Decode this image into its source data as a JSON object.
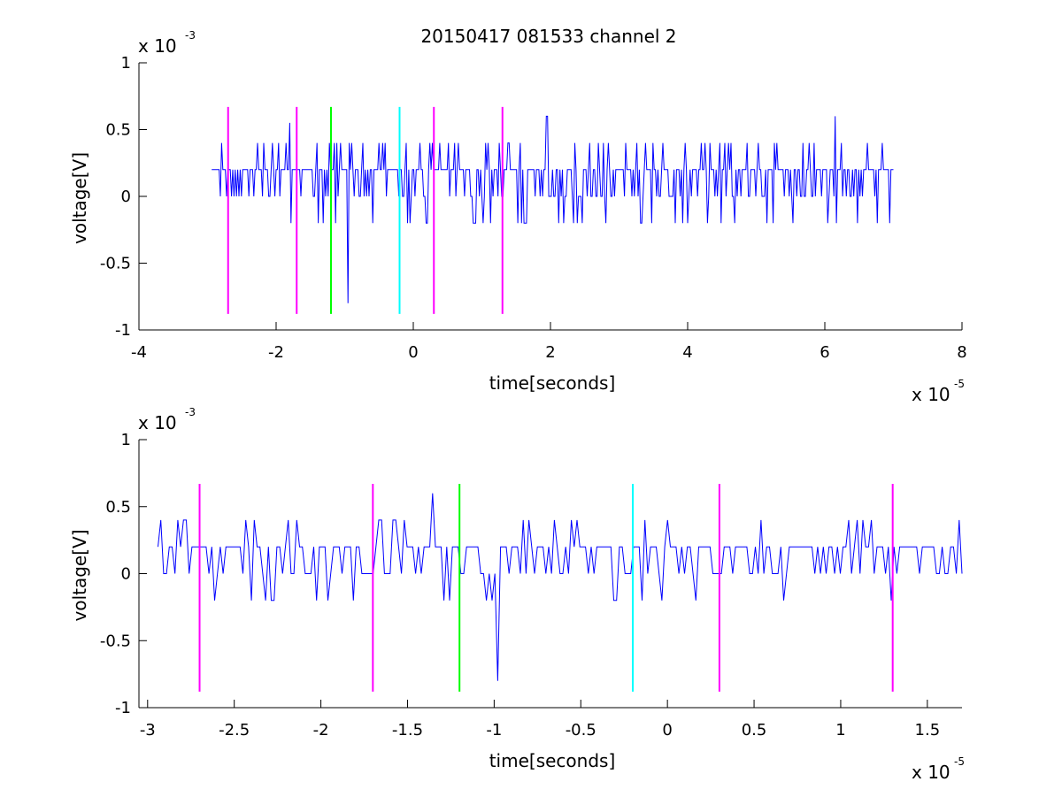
{
  "title": "20150417 081533 channel 2",
  "chart_data": [
    {
      "type": "line",
      "title": "20150417 081533 channel 2",
      "xlabel": "time[seconds]",
      "ylabel": "voltage[V]",
      "x_multiplier": "x 10",
      "x_exponent": "-5",
      "y_multiplier": "x 10",
      "y_exponent": "-3",
      "xlim": [
        -4,
        8
      ],
      "ylim": [
        -1,
        1
      ],
      "xticks": [
        -4,
        -2,
        0,
        2,
        4,
        6,
        8
      ],
      "xtick_labels": [
        "-4",
        "-2",
        "0",
        "2",
        "4",
        "6",
        "8"
      ],
      "yticks": [
        -1,
        -0.5,
        0,
        0.5,
        1
      ],
      "ytick_labels": [
        "-1",
        "-0.5",
        "0",
        "0.5",
        "1"
      ],
      "grid": false,
      "series": [
        {
          "color": "#0000ff",
          "x_range": [
            -2.94,
            7.0
          ],
          "levels": [
            0,
            0.2,
            0.4,
            -0.2
          ],
          "spikes": [
            {
              "x": -0.95,
              "y": -0.8
            },
            {
              "x": -1.8,
              "y": 0.55
            },
            {
              "x": 1.95,
              "y": 0.6
            },
            {
              "x": 6.15,
              "y": 0.6
            }
          ]
        }
      ],
      "markers": [
        {
          "x": -2.7,
          "color": "#ff00ff",
          "y_range": [
            -0.88,
            0.67
          ]
        },
        {
          "x": -1.7,
          "color": "#ff00ff",
          "y_range": [
            -0.88,
            0.67
          ]
        },
        {
          "x": -1.2,
          "color": "#00ff00",
          "y_range": [
            -0.88,
            0.67
          ]
        },
        {
          "x": -0.2,
          "color": "#00ffff",
          "y_range": [
            -0.88,
            0.67
          ]
        },
        {
          "x": 0.3,
          "color": "#ff00ff",
          "y_range": [
            -0.88,
            0.67
          ]
        },
        {
          "x": 1.3,
          "color": "#ff00ff",
          "y_range": [
            -0.88,
            0.67
          ]
        }
      ]
    },
    {
      "type": "line",
      "xlabel": "time[seconds]",
      "ylabel": "voltage[V]",
      "x_multiplier": "x 10",
      "x_exponent": "-5",
      "y_multiplier": "x 10",
      "y_exponent": "-3",
      "xlim": [
        -3.05,
        1.7
      ],
      "ylim": [
        -1,
        1
      ],
      "xticks": [
        -3,
        -2.5,
        -2,
        -1.5,
        -1,
        -0.5,
        0,
        0.5,
        1,
        1.5
      ],
      "xtick_labels": [
        "-3",
        "-2.5",
        "-2",
        "-1.5",
        "-1",
        "-0.5",
        "0",
        "0.5",
        "1",
        "1.5"
      ],
      "yticks": [
        -1,
        -0.5,
        0,
        0.5,
        1
      ],
      "ytick_labels": [
        "-1",
        "-0.5",
        "0",
        "0.5",
        "1"
      ],
      "grid": false,
      "series": [
        {
          "color": "#0000ff",
          "x_range": [
            -2.94,
            1.7
          ],
          "levels": [
            0,
            0.2,
            0.4,
            -0.2
          ],
          "spikes": [
            {
              "x": -0.98,
              "y": -0.8
            },
            {
              "x": -1.36,
              "y": 0.6
            }
          ]
        }
      ],
      "markers": [
        {
          "x": -2.7,
          "color": "#ff00ff",
          "y_range": [
            -0.88,
            0.67
          ]
        },
        {
          "x": -1.7,
          "color": "#ff00ff",
          "y_range": [
            -0.88,
            0.67
          ]
        },
        {
          "x": -1.2,
          "color": "#00ff00",
          "y_range": [
            -0.88,
            0.67
          ]
        },
        {
          "x": -0.2,
          "color": "#00ffff",
          "y_range": [
            -0.88,
            0.67
          ]
        },
        {
          "x": 0.3,
          "color": "#ff00ff",
          "y_range": [
            -0.88,
            0.67
          ]
        },
        {
          "x": 1.3,
          "color": "#ff00ff",
          "y_range": [
            -0.88,
            0.67
          ]
        }
      ]
    }
  ]
}
